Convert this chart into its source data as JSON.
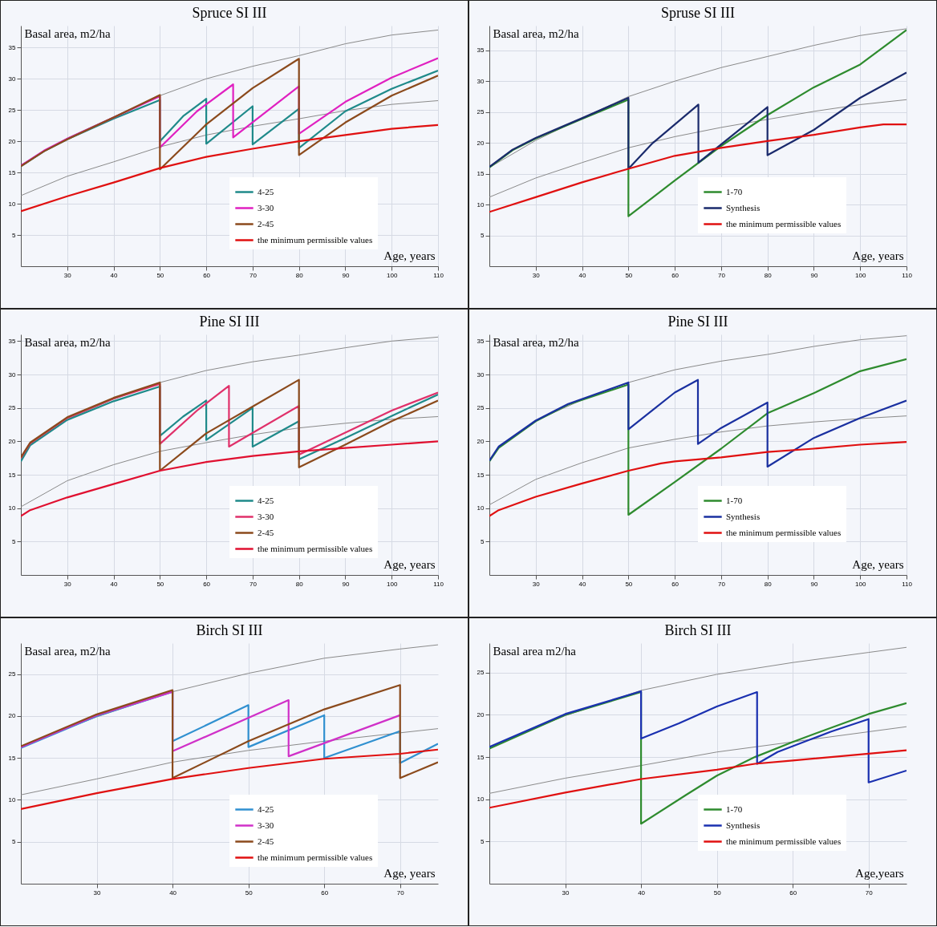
{
  "chart_data": [
    {
      "type": "line",
      "title": "Spruce SI III",
      "xlabel": "Age, years",
      "ylabel": "Basal area, m2/ha",
      "xlim": [
        20,
        110
      ],
      "xticks": [
        30,
        40,
        50,
        60,
        70,
        80,
        90,
        100,
        110
      ],
      "ylim": [
        0,
        38.5
      ],
      "yticks": [
        5,
        10,
        15,
        20,
        25,
        30,
        35
      ],
      "grid": true,
      "legend": "bottom",
      "series": [
        {
          "color": "#8a8a8a",
          "x": [
            20,
            30,
            40,
            50,
            60,
            70,
            80,
            90,
            100,
            110
          ],
          "values": [
            16.2,
            20.5,
            23.9,
            27.3,
            30.0,
            32.0,
            33.7,
            35.6,
            37.0,
            37.8
          ]
        },
        {
          "color": "#8a8a8a",
          "x": [
            20,
            30,
            40,
            50,
            60,
            70,
            80,
            90,
            100,
            110
          ],
          "values": [
            11.3,
            14.4,
            16.7,
            19.1,
            21.0,
            22.4,
            23.6,
            24.9,
            25.9,
            26.5
          ]
        },
        {
          "name": "4-25",
          "color": "#1f8a8a",
          "x": [
            20,
            25,
            30,
            40,
            50,
            50,
            55,
            60,
            60,
            70,
            70,
            80,
            80,
            90,
            100,
            110
          ],
          "values": [
            16.0,
            18.4,
            20.3,
            23.6,
            26.6,
            20.0,
            24.0,
            26.8,
            19.6,
            25.6,
            19.5,
            25.2,
            18.9,
            24.8,
            28.4,
            31.3
          ]
        },
        {
          "name": "3-30",
          "color": "#e020c0",
          "x": [
            20,
            25,
            30,
            40,
            50,
            50,
            58,
            65.8,
            65.8,
            80,
            80,
            90,
            100,
            110
          ],
          "values": [
            16.1,
            18.5,
            20.4,
            23.8,
            27.2,
            19.0,
            24.8,
            29.1,
            20.6,
            28.8,
            21.2,
            26.3,
            30.2,
            33.3
          ]
        },
        {
          "name": "2-45",
          "color": "#8b4a1c",
          "x": [
            20,
            25,
            30,
            40,
            50,
            50,
            60,
            70,
            80,
            80,
            90,
            100,
            110
          ],
          "values": [
            16.0,
            18.4,
            20.3,
            23.8,
            27.4,
            15.5,
            22.7,
            28.5,
            33.2,
            17.8,
            23.0,
            27.3,
            30.5
          ]
        },
        {
          "name": "the minimum permissible values",
          "color": "#e01010",
          "x": [
            20,
            30,
            40,
            50,
            60,
            70,
            80,
            90,
            100,
            110
          ],
          "values": [
            8.8,
            11.2,
            13.4,
            15.7,
            17.5,
            18.8,
            20.0,
            21.0,
            22.0,
            22.6
          ]
        }
      ]
    },
    {
      "type": "line",
      "title": "Spruse SI III",
      "xlabel": "Age, years",
      "ylabel": "Basal area, m2/ha",
      "xlim": [
        20,
        110
      ],
      "xticks": [
        30,
        40,
        50,
        60,
        70,
        80,
        90,
        100,
        110
      ],
      "ylim": [
        0,
        39
      ],
      "yticks": [
        5,
        10,
        15,
        20,
        25,
        30,
        35
      ],
      "grid": true,
      "legend": "bottom",
      "series": [
        {
          "color": "#8a8a8a",
          "x": [
            20,
            30,
            40,
            50,
            60,
            70,
            80,
            90,
            100,
            110
          ],
          "values": [
            16.0,
            20.4,
            24.0,
            27.5,
            30.0,
            32.2,
            34.0,
            35.8,
            37.4,
            38.5
          ]
        },
        {
          "color": "#8a8a8a",
          "x": [
            20,
            30,
            40,
            50,
            60,
            70,
            80,
            90,
            100,
            110
          ],
          "values": [
            11.2,
            14.3,
            16.8,
            19.2,
            21.0,
            22.5,
            23.8,
            25.1,
            26.2,
            27.0
          ]
        },
        {
          "name": "1-70",
          "color": "#2e8b2e",
          "x": [
            20,
            25,
            30,
            40,
            50,
            50,
            60,
            70,
            80,
            90,
            100,
            110
          ],
          "values": [
            16.0,
            18.8,
            20.7,
            23.9,
            27.0,
            8.1,
            13.9,
            19.5,
            24.5,
            29.0,
            32.7,
            38.3
          ]
        },
        {
          "name": "Synthesis",
          "color": "#1a2a6c",
          "x": [
            20,
            25,
            30,
            40,
            50,
            50,
            55,
            65.1,
            65.1,
            80,
            80,
            90,
            100,
            110
          ],
          "values": [
            16.1,
            18.9,
            20.8,
            24.0,
            27.3,
            15.8,
            19.8,
            26.2,
            16.8,
            25.8,
            18.0,
            22.1,
            27.3,
            31.4
          ]
        },
        {
          "name": "the minimum permissible values",
          "color": "#e01010",
          "x": [
            20,
            30,
            40,
            50,
            60,
            70,
            80,
            90,
            100,
            105,
            110
          ],
          "values": [
            8.8,
            11.2,
            13.6,
            15.8,
            17.9,
            19.2,
            20.3,
            21.3,
            22.5,
            23.0,
            23.0
          ]
        }
      ]
    },
    {
      "type": "line",
      "title": "Pine SI III",
      "xlabel": "Age, years",
      "ylabel": "Basal area, m2/ha",
      "xlim": [
        20,
        110
      ],
      "xticks": [
        30,
        40,
        50,
        60,
        70,
        80,
        90,
        100,
        110
      ],
      "ylim": [
        0,
        36
      ],
      "yticks": [
        5,
        10,
        15,
        20,
        25,
        30,
        35
      ],
      "grid": true,
      "legend": "bottom",
      "series": [
        {
          "color": "#8a8a8a",
          "x": [
            20,
            22,
            30,
            40,
            50,
            60,
            70,
            80,
            90,
            100,
            110
          ],
          "values": [
            17.3,
            19.5,
            23.3,
            26.3,
            28.8,
            30.6,
            31.9,
            32.9,
            34.0,
            35.0,
            35.6
          ]
        },
        {
          "color": "#8a8a8a",
          "x": [
            20,
            30,
            40,
            50,
            60,
            70,
            80,
            90,
            100,
            110
          ],
          "values": [
            10.2,
            14.1,
            16.5,
            18.5,
            19.8,
            21.0,
            22.0,
            22.7,
            23.3,
            23.7
          ]
        },
        {
          "name": "4-25",
          "color": "#1f8a8a",
          "x": [
            20,
            22,
            30,
            40,
            50,
            50,
            55,
            60,
            60,
            70,
            70,
            80,
            80,
            90,
            100,
            110
          ],
          "values": [
            17.0,
            19.4,
            23.2,
            26.0,
            28.2,
            20.8,
            23.7,
            26.1,
            20.2,
            25.0,
            19.2,
            23.0,
            17.3,
            20.5,
            23.8,
            27.0
          ]
        },
        {
          "name": "3-30",
          "color": "#e0306a",
          "x": [
            20,
            22,
            30,
            40,
            50,
            50,
            58,
            64.9,
            64.9,
            80,
            80,
            90,
            100,
            110
          ],
          "values": [
            17.5,
            19.7,
            23.5,
            26.4,
            28.6,
            19.6,
            24.6,
            28.3,
            19.2,
            25.3,
            18.0,
            21.3,
            24.6,
            27.3
          ]
        },
        {
          "name": "2-45",
          "color": "#8b4a1c",
          "x": [
            20,
            22,
            30,
            40,
            50,
            50,
            60,
            70,
            80,
            80,
            90,
            100,
            110
          ],
          "values": [
            17.6,
            19.8,
            23.6,
            26.5,
            28.8,
            15.6,
            21.2,
            25.2,
            29.2,
            16.1,
            19.5,
            23.0,
            26.1
          ]
        },
        {
          "name": "the minimum permissible values",
          "color": "#e01030",
          "x": [
            20,
            22,
            30,
            40,
            50,
            60,
            70,
            80,
            90,
            100,
            110
          ],
          "values": [
            8.8,
            9.7,
            11.6,
            13.6,
            15.6,
            16.9,
            17.8,
            18.5,
            19.0,
            19.5,
            20.0
          ]
        }
      ]
    },
    {
      "type": "line",
      "title": "Pine SI III",
      "xlabel": "Age, years",
      "ylabel": "Basal area, m2/ha",
      "xlim": [
        20,
        110
      ],
      "xticks": [
        30,
        40,
        50,
        60,
        70,
        80,
        90,
        100,
        110
      ],
      "ylim": [
        0,
        36
      ],
      "yticks": [
        5,
        10,
        15,
        20,
        25,
        30,
        35
      ],
      "grid": true,
      "legend": "bottom",
      "series": [
        {
          "color": "#8a8a8a",
          "x": [
            20,
            22,
            30,
            40,
            50,
            60,
            70,
            80,
            90,
            100,
            110
          ],
          "values": [
            17.0,
            19.2,
            23.1,
            26.2,
            28.8,
            30.7,
            32.0,
            33.0,
            34.2,
            35.2,
            35.8
          ]
        },
        {
          "color": "#8a8a8a",
          "x": [
            20,
            30,
            40,
            50,
            60,
            70,
            80,
            90,
            100,
            110
          ],
          "values": [
            10.5,
            14.3,
            16.8,
            19.0,
            20.3,
            21.4,
            22.3,
            22.9,
            23.4,
            23.8
          ]
        },
        {
          "name": "1-70",
          "color": "#2e8b2e",
          "x": [
            20,
            22,
            30,
            37,
            50,
            50,
            60,
            70,
            80,
            90,
            100,
            110
          ],
          "values": [
            17.0,
            19.0,
            23.0,
            25.5,
            28.5,
            9.0,
            13.9,
            18.9,
            24.2,
            27.2,
            30.5,
            32.3
          ]
        },
        {
          "name": "Synthesis",
          "color": "#1a30a0",
          "x": [
            20,
            22,
            30,
            37,
            50,
            50,
            60,
            65,
            65,
            70,
            80,
            80,
            90,
            100,
            110
          ],
          "values": [
            17.1,
            19.2,
            23.1,
            25.6,
            28.8,
            21.8,
            27.3,
            29.2,
            19.6,
            22.0,
            25.8,
            16.2,
            20.5,
            23.5,
            26.1
          ]
        },
        {
          "name": "the minimum permissible values",
          "color": "#e01010",
          "x": [
            20,
            22,
            30,
            40,
            50,
            57,
            60,
            70,
            80,
            90,
            100,
            110
          ],
          "values": [
            8.8,
            9.7,
            11.7,
            13.7,
            15.6,
            16.7,
            17.0,
            17.6,
            18.4,
            18.9,
            19.5,
            19.9
          ]
        }
      ]
    },
    {
      "type": "line",
      "title": "Birch SI III",
      "xlabel": "Age, years",
      "ylabel": "Basal area, m2/ha",
      "xlim": [
        20,
        75
      ],
      "xticks": [
        30,
        40,
        50,
        60,
        70
      ],
      "ylim": [
        0,
        28.7
      ],
      "yticks": [
        5,
        10,
        15,
        20,
        25
      ],
      "grid": true,
      "legend": "bottom",
      "series": [
        {
          "color": "#8a8a8a",
          "x": [
            20,
            30,
            40,
            50,
            60,
            70,
            75
          ],
          "values": [
            16.4,
            19.9,
            22.9,
            25.1,
            26.9,
            28.0,
            28.5
          ]
        },
        {
          "color": "#8a8a8a",
          "x": [
            20,
            30,
            40,
            50,
            60,
            70,
            75
          ],
          "values": [
            10.6,
            12.5,
            14.5,
            15.9,
            17.0,
            18.0,
            18.5
          ]
        },
        {
          "name": "4-25",
          "color": "#3090d0",
          "x": [
            20,
            30,
            40,
            40,
            50,
            50,
            60,
            60,
            70,
            70,
            75
          ],
          "values": [
            16.2,
            20.0,
            22.9,
            17.0,
            21.3,
            16.3,
            20.1,
            15.0,
            18.2,
            14.4,
            16.7
          ]
        },
        {
          "name": "3-30",
          "color": "#d030c8",
          "x": [
            20,
            30,
            40,
            40,
            55.3,
            55.3,
            70
          ],
          "values": [
            16.3,
            20.1,
            22.9,
            15.8,
            21.9,
            15.2,
            20.1
          ]
        },
        {
          "name": "2-45",
          "color": "#8b4a1c",
          "x": [
            20,
            30,
            40,
            40,
            50,
            60,
            70,
            70,
            75
          ],
          "values": [
            16.4,
            20.2,
            23.1,
            12.6,
            17.0,
            20.8,
            23.7,
            12.6,
            14.5
          ]
        },
        {
          "name": "the minimum permissible values",
          "color": "#e01010",
          "x": [
            20,
            30,
            40,
            50,
            60,
            70,
            75
          ],
          "values": [
            8.9,
            10.8,
            12.5,
            13.8,
            14.9,
            15.5,
            16.0
          ]
        }
      ]
    },
    {
      "type": "line",
      "title": "Birch SI III",
      "xlabel": "Age,years",
      "ylabel": "Basal area m2/ha",
      "xlim": [
        20,
        75
      ],
      "xticks": [
        30,
        40,
        50,
        60,
        70
      ],
      "ylim": [
        0,
        28.5
      ],
      "yticks": [
        5,
        10,
        15,
        20,
        25
      ],
      "grid": true,
      "legend": "bottom",
      "series": [
        {
          "color": "#8a8a8a",
          "x": [
            20,
            30,
            40,
            50,
            60,
            70,
            75
          ],
          "values": [
            16.2,
            19.9,
            22.9,
            24.8,
            26.2,
            27.4,
            28.0
          ]
        },
        {
          "color": "#8a8a8a",
          "x": [
            20,
            30,
            40,
            50,
            60,
            70,
            75
          ],
          "values": [
            10.7,
            12.5,
            14.0,
            15.6,
            16.8,
            18.0,
            18.6
          ]
        },
        {
          "name": "1-70",
          "color": "#2e8b2e",
          "x": [
            20,
            30,
            40,
            40,
            45.9,
            50,
            55,
            60,
            70,
            75
          ],
          "values": [
            16.0,
            20.0,
            22.7,
            7.1,
            10.5,
            12.8,
            15.0,
            16.8,
            20.1,
            21.4
          ]
        },
        {
          "name": "Synthesis",
          "color": "#1a30b0",
          "x": [
            20,
            30,
            40,
            40,
            45,
            50,
            55.3,
            55.3,
            58,
            65,
            70,
            70,
            75
          ],
          "values": [
            16.2,
            20.1,
            22.8,
            17.2,
            19.0,
            21.0,
            22.7,
            14.2,
            15.6,
            18.0,
            19.5,
            12.0,
            13.4
          ]
        },
        {
          "name": "the minimum permissible values",
          "color": "#e01010",
          "x": [
            20,
            30,
            40,
            50,
            55,
            60,
            70,
            75
          ],
          "values": [
            9.0,
            10.8,
            12.4,
            13.5,
            14.2,
            14.6,
            15.4,
            15.8
          ]
        }
      ]
    }
  ]
}
